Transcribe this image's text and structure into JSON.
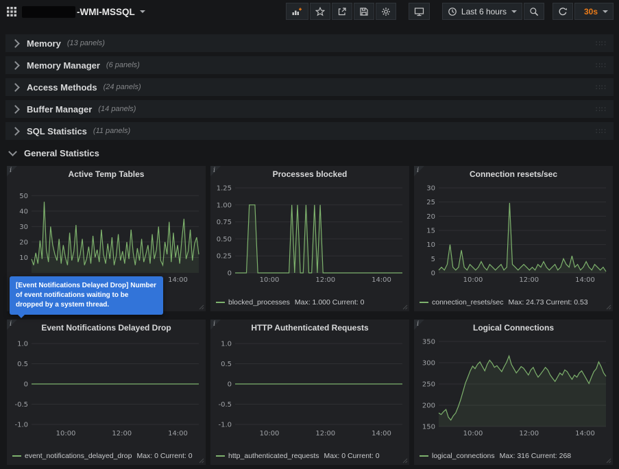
{
  "navbar": {
    "title": "-WMI-MSSQL",
    "time_range": "Last 6 hours",
    "refresh_interval": "30s"
  },
  "rows": [
    {
      "label": "Memory",
      "count": "(13 panels)"
    },
    {
      "label": "Memory Manager",
      "count": "(6 panels)"
    },
    {
      "label": "Access Methods",
      "count": "(24 panels)"
    },
    {
      "label": "Buffer Manager",
      "count": "(14 panels)"
    },
    {
      "label": "SQL Statistics",
      "count": "(11 panels)"
    }
  ],
  "expanded_row": {
    "label": "General Statistics"
  },
  "tooltip": {
    "text": "[Event Notifications Delayed Drop] Number of event notifications waiting to be dropped by a system thread.",
    "bg": "#3274d9"
  },
  "colors": {
    "series_green": "#7eb26d",
    "accent_orange": "#eb7b18"
  },
  "chart_data": [
    {
      "type": "line",
      "title": "Active Temp Tables",
      "line_color": "#7eb26d",
      "ymin": 0,
      "ymax": 55,
      "y_ticks": [
        {
          "v": 50,
          "t": "50"
        },
        {
          "v": 40,
          "t": "40"
        },
        {
          "v": 30,
          "t": "30"
        },
        {
          "v": 20,
          "t": "20"
        },
        {
          "v": 10,
          "t": "10"
        }
      ],
      "x_ticks": [
        {
          "f": 0.205,
          "t": "10:00"
        },
        {
          "f": 0.54,
          "t": "12:00"
        },
        {
          "f": 0.875,
          "t": "14:00"
        }
      ],
      "values": [
        9,
        5,
        13,
        6,
        21,
        9,
        46,
        15,
        7,
        30,
        18,
        12,
        8,
        22,
        6,
        18,
        10,
        5,
        26,
        8,
        14,
        31,
        7,
        12,
        22,
        5,
        9,
        17,
        6,
        24,
        10,
        15,
        7,
        28,
        12,
        6,
        19,
        9,
        23,
        5,
        11,
        25,
        8,
        14,
        6,
        20,
        9,
        28,
        13,
        5,
        16,
        8,
        22,
        7,
        12,
        18,
        6,
        25,
        9,
        15,
        30,
        8,
        5,
        20,
        12,
        33,
        7,
        26,
        10,
        18,
        6,
        22,
        35,
        9,
        14,
        28,
        8,
        19,
        23,
        12
      ],
      "legend": null
    },
    {
      "type": "line",
      "title": "Processes blocked",
      "line_color": "#7eb26d",
      "ymin": 0,
      "ymax": 1.25,
      "y_ticks": [
        {
          "v": 1.25,
          "t": "1.25"
        },
        {
          "v": 1.0,
          "t": "1.00"
        },
        {
          "v": 0.75,
          "t": "0.75"
        },
        {
          "v": 0.5,
          "t": "0.50"
        },
        {
          "v": 0.25,
          "t": "0.25"
        },
        {
          "v": 0,
          "t": "0"
        }
      ],
      "x_ticks": [
        {
          "f": 0.205,
          "t": "10:00"
        },
        {
          "f": 0.54,
          "t": "12:00"
        },
        {
          "f": 0.875,
          "t": "14:00"
        }
      ],
      "values": [
        0,
        0,
        0,
        0,
        0,
        1,
        1,
        1,
        0,
        0,
        0,
        0,
        0,
        0,
        0,
        0,
        0,
        0,
        0,
        0,
        1,
        0,
        1,
        0,
        0,
        1,
        0,
        0,
        1,
        0,
        1,
        0,
        0,
        0,
        0,
        0,
        0,
        0,
        0,
        0,
        0,
        0,
        0,
        0,
        0,
        0,
        0,
        0,
        0,
        0,
        0,
        0,
        0,
        0,
        0,
        0,
        0,
        0,
        0,
        0
      ],
      "legend": {
        "name": "blocked_processes",
        "stats": "Max: 1.000 Current: 0"
      }
    },
    {
      "type": "line",
      "title": "Connection resets/sec",
      "line_color": "#7eb26d",
      "ymin": 0,
      "ymax": 30,
      "y_ticks": [
        {
          "v": 30,
          "t": "30"
        },
        {
          "v": 25,
          "t": "25"
        },
        {
          "v": 20,
          "t": "20"
        },
        {
          "v": 15,
          "t": "15"
        },
        {
          "v": 10,
          "t": "10"
        },
        {
          "v": 5,
          "t": "5"
        },
        {
          "v": 0,
          "t": "0"
        }
      ],
      "x_ticks": [
        {
          "f": 0.205,
          "t": "10:00"
        },
        {
          "f": 0.54,
          "t": "12:00"
        },
        {
          "f": 0.875,
          "t": "14:00"
        }
      ],
      "values": [
        1,
        2,
        1,
        3,
        10,
        2,
        1,
        2,
        8,
        2,
        1,
        3,
        2,
        1,
        2,
        4,
        2,
        1,
        3,
        2,
        1,
        2,
        3,
        1,
        2,
        24.7,
        3,
        2,
        1,
        2,
        3,
        2,
        1,
        2,
        1,
        3,
        2,
        4,
        2,
        1,
        2,
        3,
        1,
        2,
        5,
        3,
        2,
        6,
        2,
        3,
        1,
        2,
        4,
        2,
        1,
        3,
        2,
        1,
        2,
        0.5
      ],
      "legend": {
        "name": "connection_resets/sec",
        "stats": "Max: 24.73 Current: 0.53"
      }
    },
    {
      "type": "line",
      "title": "Event Notifications Delayed Drop",
      "line_color": "#7eb26d",
      "ymin": -1.05,
      "ymax": 1.05,
      "y_ticks": [
        {
          "v": 1,
          "t": "1.0"
        },
        {
          "v": 0.5,
          "t": "0.5"
        },
        {
          "v": 0,
          "t": "0"
        },
        {
          "v": -0.5,
          "t": "-0.5"
        },
        {
          "v": -1,
          "t": "-1.0"
        }
      ],
      "x_ticks": [
        {
          "f": 0.205,
          "t": "10:00"
        },
        {
          "f": 0.54,
          "t": "12:00"
        },
        {
          "f": 0.875,
          "t": "14:00"
        }
      ],
      "values": [
        0,
        0,
        0,
        0
      ],
      "legend": {
        "name": "event_notifications_delayed_drop",
        "stats": "Max: 0 Current: 0"
      }
    },
    {
      "type": "line",
      "title": "HTTP Authenticated Requests",
      "line_color": "#7eb26d",
      "ymin": -1.05,
      "ymax": 1.05,
      "y_ticks": [
        {
          "v": 1,
          "t": "1.0"
        },
        {
          "v": 0.5,
          "t": "0.5"
        },
        {
          "v": 0,
          "t": "0"
        },
        {
          "v": -0.5,
          "t": "-0.5"
        },
        {
          "v": -1,
          "t": "-1.0"
        }
      ],
      "x_ticks": [
        {
          "f": 0.205,
          "t": "10:00"
        },
        {
          "f": 0.54,
          "t": "12:00"
        },
        {
          "f": 0.875,
          "t": "14:00"
        }
      ],
      "values": [
        0,
        0,
        0,
        0
      ],
      "legend": {
        "name": "http_authenticated_requests",
        "stats": "Max: 0 Current: 0"
      }
    },
    {
      "type": "line",
      "title": "Logical Connections",
      "line_color": "#7eb26d",
      "ymin": 150,
      "ymax": 350,
      "y_ticks": [
        {
          "v": 350,
          "t": "350"
        },
        {
          "v": 300,
          "t": "300"
        },
        {
          "v": 250,
          "t": "250"
        },
        {
          "v": 200,
          "t": "200"
        },
        {
          "v": 150,
          "t": "150"
        }
      ],
      "x_ticks": [
        {
          "f": 0.205,
          "t": "10:00"
        },
        {
          "f": 0.54,
          "t": "12:00"
        },
        {
          "f": 0.875,
          "t": "14:00"
        }
      ],
      "values": [
        182,
        178,
        185,
        190,
        172,
        165,
        175,
        182,
        196,
        212,
        232,
        252,
        266,
        281,
        292,
        286,
        296,
        302,
        291,
        281,
        296,
        306,
        299,
        289,
        293,
        286,
        279,
        291,
        301,
        316,
        296,
        286,
        276,
        283,
        291,
        287,
        279,
        271,
        283,
        289,
        276,
        266,
        273,
        281,
        289,
        283,
        271,
        263,
        256,
        266,
        276,
        271,
        283,
        279,
        269,
        261,
        271,
        266,
        276,
        281,
        271,
        261,
        251,
        266,
        279,
        286,
        302,
        291,
        276,
        268
      ],
      "legend": {
        "name": "logical_connections",
        "stats": "Max: 316 Current: 268"
      }
    }
  ]
}
